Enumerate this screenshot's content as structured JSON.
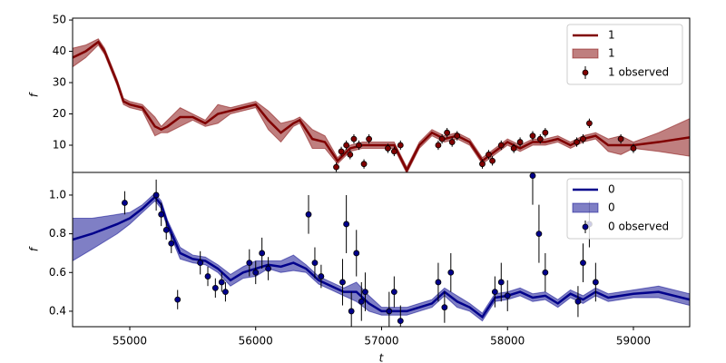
{
  "chart_data": [
    {
      "type": "line",
      "ylabel": "f",
      "xlim": [
        54546,
        59447
      ],
      "ylim": [
        1.3,
        50.6
      ],
      "yticks": [
        10,
        20,
        30,
        40,
        50
      ],
      "legend": "upper right",
      "line": {
        "name": "1",
        "color": "#800000",
        "x": [
          54546,
          54650,
          54750,
          54800,
          54850,
          54900,
          54950,
          55000,
          55100,
          55200,
          55250,
          55300,
          55400,
          55500,
          55600,
          55700,
          55800,
          55900,
          56000,
          56100,
          56200,
          56300,
          56350,
          56450,
          56550,
          56650,
          56750,
          56850,
          56950,
          57100,
          57200,
          57300,
          57400,
          57500,
          57600,
          57700,
          57800,
          57900,
          58000,
          58100,
          58200,
          58300,
          58400,
          58500,
          58600,
          58700,
          58800,
          58900,
          59000,
          59200,
          59447
        ],
        "values": [
          38,
          40,
          43,
          40,
          35,
          30,
          24,
          23,
          22,
          16,
          15,
          16,
          19,
          19,
          17,
          20,
          21,
          22,
          23,
          18,
          14,
          17,
          18,
          12,
          11,
          5,
          9,
          10,
          10,
          10,
          2,
          10,
          14,
          12,
          13,
          11,
          5,
          8,
          11,
          9,
          11,
          11,
          12,
          10,
          12,
          13,
          10,
          10,
          10,
          11,
          12.5
        ]
      },
      "band": {
        "name": "1",
        "color": "#800000",
        "lower": [
          35,
          38,
          42,
          39,
          34,
          29,
          23,
          22,
          21,
          13,
          14,
          14,
          16,
          18,
          16,
          17,
          20,
          21,
          22,
          15,
          11,
          16,
          17,
          9,
          9,
          4,
          8,
          9,
          9,
          9,
          1,
          9,
          13,
          11,
          12,
          10,
          4,
          7,
          10,
          8,
          10,
          10,
          11,
          9,
          11,
          12,
          8,
          7,
          9,
          8,
          6.5
        ],
        "upper": [
          41,
          42,
          44,
          41,
          36,
          31,
          25,
          24,
          23,
          19,
          16,
          18,
          22,
          20,
          18,
          23,
          22,
          23,
          24,
          21,
          17,
          18,
          19,
          15,
          13,
          6,
          10,
          11,
          11,
          11,
          3,
          11,
          15,
          13,
          14,
          12,
          6,
          9,
          12,
          10,
          12,
          12,
          13,
          11,
          13,
          14,
          12,
          13,
          11,
          14,
          18.5
        ]
      },
      "observed": {
        "name": "1 observed",
        "color": "#800000",
        "x": [
          56640,
          56680,
          56720,
          56750,
          56780,
          56820,
          56860,
          56900,
          57050,
          57100,
          57150,
          57450,
          57480,
          57520,
          57560,
          57600,
          57800,
          57850,
          57880,
          57950,
          58050,
          58100,
          58200,
          58260,
          58300,
          58550,
          58600,
          58650,
          58900,
          59000
        ],
        "values": [
          3,
          8,
          10,
          7,
          12,
          10,
          4,
          12,
          9,
          8,
          10,
          10,
          12,
          14,
          11,
          13,
          4,
          7,
          5,
          10,
          9,
          11,
          13,
          12,
          14,
          11,
          12,
          17,
          12,
          9
        ],
        "errors": [
          1.5,
          1.5,
          1.5,
          1.5,
          1.5,
          1.5,
          1.5,
          1.5,
          1.5,
          1.5,
          1.5,
          1.5,
          1.5,
          1.5,
          1.5,
          1.5,
          1.5,
          1.5,
          1.5,
          1.5,
          1.5,
          1.5,
          1.5,
          1.5,
          1.5,
          1.5,
          1.5,
          1.5,
          1.5,
          1.5
        ]
      }
    },
    {
      "type": "line",
      "ylabel": "f",
      "xlabel": "t",
      "xlim": [
        54546,
        59447
      ],
      "ylim": [
        0.32,
        1.117
      ],
      "xticks": [
        55000,
        56000,
        57000,
        58000,
        59000
      ],
      "yticks": [
        0.4,
        0.6,
        0.8,
        {
          "value": 1,
          "label": "1.0"
        }
      ],
      "legend": "upper right",
      "line": {
        "name": "0",
        "color": "#00008b",
        "x": [
          54546,
          54700,
          54900,
          55000,
          55100,
          55200,
          55250,
          55300,
          55400,
          55500,
          55600,
          55700,
          55800,
          55900,
          56000,
          56100,
          56200,
          56300,
          56400,
          56500,
          56600,
          56700,
          56800,
          56900,
          57000,
          57100,
          57200,
          57300,
          57400,
          57500,
          57600,
          57700,
          57800,
          57900,
          58000,
          58100,
          58200,
          58300,
          58400,
          58500,
          58600,
          58700,
          58800,
          58900,
          59000,
          59200,
          59447
        ],
        "values": [
          0.77,
          0.8,
          0.85,
          0.88,
          0.93,
          0.99,
          0.95,
          0.85,
          0.7,
          0.67,
          0.66,
          0.62,
          0.56,
          0.6,
          0.62,
          0.64,
          0.63,
          0.65,
          0.62,
          0.56,
          0.53,
          0.5,
          0.5,
          0.44,
          0.4,
          0.4,
          0.4,
          0.42,
          0.44,
          0.5,
          0.45,
          0.42,
          0.37,
          0.47,
          0.48,
          0.5,
          0.47,
          0.48,
          0.44,
          0.49,
          0.46,
          0.5,
          0.47,
          0.48,
          0.49,
          0.5,
          0.46
        ]
      },
      "band": {
        "name": "0",
        "color": "#00008b",
        "lower": [
          0.66,
          0.72,
          0.8,
          0.85,
          0.91,
          0.97,
          0.93,
          0.83,
          0.67,
          0.65,
          0.64,
          0.6,
          0.53,
          0.57,
          0.58,
          0.62,
          0.6,
          0.61,
          0.6,
          0.54,
          0.51,
          0.48,
          0.45,
          0.4,
          0.38,
          0.38,
          0.38,
          0.4,
          0.42,
          0.48,
          0.42,
          0.4,
          0.35,
          0.45,
          0.46,
          0.48,
          0.45,
          0.46,
          0.42,
          0.47,
          0.44,
          0.48,
          0.45,
          0.46,
          0.47,
          0.47,
          0.43
        ],
        "upper": [
          0.88,
          0.88,
          0.9,
          0.91,
          0.95,
          1.01,
          0.97,
          0.87,
          0.73,
          0.69,
          0.68,
          0.64,
          0.59,
          0.63,
          0.66,
          0.66,
          0.66,
          0.69,
          0.64,
          0.58,
          0.55,
          0.52,
          0.55,
          0.48,
          0.42,
          0.42,
          0.42,
          0.44,
          0.46,
          0.52,
          0.48,
          0.44,
          0.39,
          0.49,
          0.5,
          0.52,
          0.49,
          0.5,
          0.46,
          0.51,
          0.48,
          0.52,
          0.49,
          0.5,
          0.51,
          0.53,
          0.49
        ]
      },
      "observed": {
        "name": "0 observed",
        "color": "#00008b",
        "x": [
          54960,
          55210,
          55250,
          55290,
          55330,
          55380,
          55560,
          55620,
          55680,
          55730,
          55760,
          55950,
          56000,
          56050,
          56100,
          56420,
          56470,
          56520,
          56690,
          56720,
          56760,
          56800,
          56840,
          56870,
          57060,
          57100,
          57150,
          57450,
          57500,
          57550,
          57900,
          57950,
          58000,
          58200,
          58250,
          58300,
          58560,
          58600,
          58650,
          58700
        ],
        "values": [
          0.96,
          1.0,
          0.9,
          0.82,
          0.75,
          0.46,
          0.65,
          0.58,
          0.52,
          0.55,
          0.5,
          0.65,
          0.6,
          0.7,
          0.62,
          0.9,
          0.65,
          0.58,
          0.55,
          0.85,
          0.4,
          0.7,
          0.45,
          0.5,
          0.4,
          0.5,
          0.35,
          0.55,
          0.42,
          0.6,
          0.5,
          0.55,
          0.48,
          1.1,
          0.8,
          0.6,
          0.45,
          0.65,
          0.85,
          0.55
        ],
        "errors": [
          0.06,
          0.08,
          0.06,
          0.05,
          0.05,
          0.05,
          0.06,
          0.05,
          0.05,
          0.05,
          0.05,
          0.07,
          0.06,
          0.08,
          0.06,
          0.1,
          0.08,
          0.06,
          0.12,
          0.15,
          0.1,
          0.12,
          0.1,
          0.1,
          0.1,
          0.08,
          0.08,
          0.1,
          0.08,
          0.1,
          0.08,
          0.1,
          0.08,
          0.15,
          0.15,
          0.1,
          0.08,
          0.1,
          0.12,
          0.1
        ]
      }
    }
  ]
}
